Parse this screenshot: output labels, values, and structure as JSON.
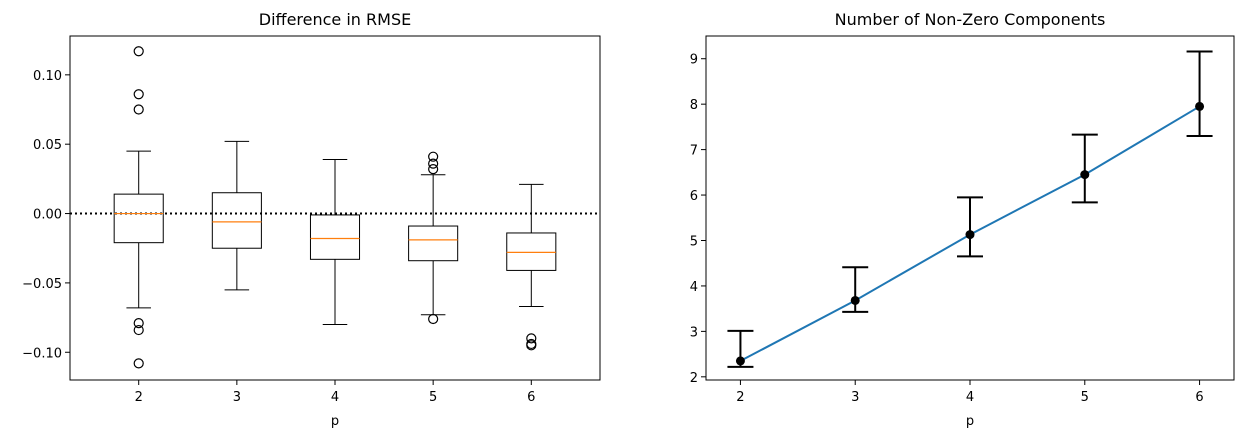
{
  "chart_data": [
    {
      "type": "box",
      "title": "Difference in RMSE",
      "xlabel": "p",
      "ylabel": "",
      "categories": [
        "2",
        "3",
        "4",
        "5",
        "6"
      ],
      "ylim": [
        -0.12,
        0.128
      ],
      "yticks": [
        0.1,
        0.05,
        0.0,
        -0.05,
        -0.1
      ],
      "ytick_labels": [
        "0.10",
        "0.05",
        "0.00",
        "−0.05",
        "−0.10"
      ],
      "reference_line": {
        "y": 0.0,
        "style": "dotted",
        "color": "#000000"
      },
      "median_color": "#ff7f0e",
      "boxes": [
        {
          "category": "2",
          "whisker_low": -0.068,
          "q1": -0.021,
          "median": 0.0,
          "q3": 0.014,
          "whisker_high": 0.045,
          "outliers": [
            0.117,
            0.086,
            0.075,
            -0.079,
            -0.084,
            -0.108
          ]
        },
        {
          "category": "3",
          "whisker_low": -0.055,
          "q1": -0.025,
          "median": -0.006,
          "q3": 0.015,
          "whisker_high": 0.052,
          "outliers": []
        },
        {
          "category": "4",
          "whisker_low": -0.08,
          "q1": -0.033,
          "median": -0.018,
          "q3": -0.001,
          "whisker_high": 0.039,
          "outliers": []
        },
        {
          "category": "5",
          "whisker_low": -0.073,
          "q1": -0.034,
          "median": -0.019,
          "q3": -0.009,
          "whisker_high": 0.028,
          "outliers": [
            0.041,
            0.036,
            0.032,
            -0.076
          ]
        },
        {
          "category": "6",
          "whisker_low": -0.067,
          "q1": -0.041,
          "median": -0.028,
          "q3": -0.014,
          "whisker_high": 0.021,
          "outliers": [
            -0.09,
            -0.094,
            -0.095
          ]
        }
      ]
    },
    {
      "type": "line",
      "title": "Number of Non-Zero Components",
      "xlabel": "p",
      "ylabel": "",
      "x": [
        2,
        3,
        4,
        5,
        6
      ],
      "xticks": [
        "2",
        "3",
        "4",
        "5",
        "6"
      ],
      "ylim": [
        1.93,
        9.5
      ],
      "yticks": [
        "2",
        "3",
        "4",
        "5",
        "6",
        "7",
        "8",
        "9"
      ],
      "line_color": "#1f77b4",
      "series": [
        {
          "values": [
            2.35,
            3.68,
            5.13,
            6.45,
            7.95
          ],
          "err_low": [
            2.22,
            3.43,
            4.65,
            5.84,
            7.3
          ],
          "err_high": [
            3.01,
            4.41,
            5.95,
            7.33,
            9.16
          ]
        }
      ]
    }
  ]
}
